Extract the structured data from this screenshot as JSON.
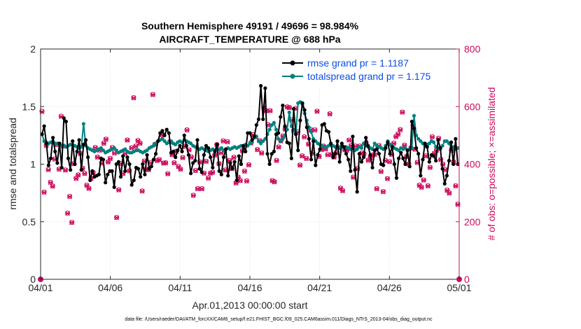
{
  "chart_data": {
    "type": "line",
    "title_line1": "Southern Hemisphere 49191 / 49696 = 98.984%",
    "title_line2": "AIRCRAFT_TEMPERATURE @ 688 hPa",
    "xlabel": "Apr.01,2013 00:00:00 start",
    "ylabel_left": "rmse and totalspread",
    "ylabel_right": "# of obs: o=possible; ×=assimilated",
    "footer": "data file: /Users/raeder/DAI/ATM_forcXX/CAM6_setup/f.e21.FHIST_BGC.f09_025.CAM6assim.011/Diags_NTrS_2013-04/obs_diag_output.nc",
    "xlim": [
      0,
      30
    ],
    "ylim_left": [
      0,
      2
    ],
    "ylim_right": [
      0,
      800
    ],
    "xticks": [
      0,
      5,
      10,
      15,
      20,
      25,
      30
    ],
    "xtick_labels": [
      "04/01",
      "04/06",
      "04/11",
      "04/16",
      "04/21",
      "04/26",
      "05/01"
    ],
    "yticks_left": [
      0,
      0.5,
      1,
      1.5,
      2
    ],
    "ytick_labels_left": [
      "0",
      "0.5",
      "1",
      "1.5",
      "2"
    ],
    "yticks_right": [
      0,
      200,
      400,
      600,
      800
    ],
    "ytick_labels_right": [
      "0",
      "200",
      "400",
      "600",
      "800"
    ],
    "grid": true,
    "legend_position": "top-right",
    "colors": {
      "rmse": "#000000",
      "spread": "#008080",
      "obs": "#cc0a5c",
      "legend_text": "#0a4de6"
    },
    "series": [
      {
        "name": "rmse grand pr = 1.1187",
        "color": "#000000",
        "y": [
          1.26,
          1.33,
          1.18,
          0.99,
          1.05,
          1.23,
          1.11,
          1.01,
          1.18,
          0.97,
          1.4,
          1.37,
          1.05,
          0.95,
          1.2,
          1.0,
          1.11,
          1.21,
          0.95,
          1.17,
          1.21,
          1.06,
          0.86,
          0.94,
          0.89,
          0.9,
          0.91,
          1.05,
          1.04,
          0.84,
          0.91,
          0.94,
          0.94,
          0.8,
          1.0,
          1.02,
          0.89,
          1.07,
          0.94,
          1.06,
          1.0,
          0.82,
          0.86,
          0.97,
          0.96,
          0.89,
          1.0,
          0.91,
          1.08,
          0.96,
          0.98,
          1.04,
          1.09,
          1.2,
          1.27,
          1.29,
          1.25,
          1.3,
          1.27,
          1.1,
          1.11,
          1.06,
          1.12,
          1.16,
          1.11,
          1.25,
          1.16,
          1.08,
          0.92,
          1.01,
          1.03,
          1.21,
          0.96,
          0.93,
          1.08,
          1.16,
          1.14,
          1.06,
          0.97,
          1.11,
          1.17,
          0.94,
          0.91,
          1.06,
          1.13,
          0.9,
          1.01,
          0.96,
          1.02,
          0.86,
          1.07,
          1.0,
          1.16,
          1.11,
          1.27,
          1.27,
          1.21,
          1.24,
          1.34,
          1.39,
          1.68,
          1.39,
          1.66,
          1.09,
          1.0,
          1.09,
          1.11,
          1.26,
          1.27,
          1.41,
          1.51,
          1.33,
          1.19,
          1.18,
          1.05,
          1.48,
          1.26,
          1.12,
          1.38,
          1.53,
          1.47,
          1.32,
          1.22,
          1.04,
          1.2,
          0.99,
          1.08,
          1.13,
          1.34,
          1.35,
          1.29,
          1.28,
          1.18,
          1.06,
          1.09,
          1.2,
          1.02,
          1.18,
          1.15,
          1.09,
          1.04,
          0.94,
          1.24,
          0.95,
          0.76,
          1.09,
          1.02,
          1.06,
          1.23,
          1.16,
          1.08,
          0.97,
          1.12,
          1.13,
          1.09,
          1.0,
          0.99,
          1.14,
          1.19,
          1.09,
          1.15,
          1.0,
          0.88,
          1.05,
          1.1,
          1.05,
          1.0,
          1.12,
          0.98,
          1.37,
          1.31,
          1.14,
          1.09,
          0.9,
          1.04,
          1.18,
          1.15,
          1.02,
          1.08,
          1.07,
          1.03,
          1.21,
          1.14,
          0.96,
          0.83,
          0.9,
          1.03,
          1.19,
          1.0,
          1.22,
          1.0
        ]
      },
      {
        "name": "totalspread grand pr = 1.175",
        "color": "#008080",
        "y": [
          1.26,
          1.2,
          1.19,
          1.18,
          1.19,
          1.2,
          1.18,
          1.18,
          1.17,
          1.16,
          1.16,
          1.15,
          1.16,
          1.17,
          1.17,
          1.16,
          1.15,
          1.14,
          1.15,
          1.35,
          1.16,
          1.14,
          1.13,
          1.12,
          1.11,
          1.12,
          1.13,
          1.14,
          1.12,
          1.1,
          1.11,
          1.12,
          1.13,
          1.14,
          1.12,
          1.1,
          1.11,
          1.12,
          1.13,
          1.11,
          1.1,
          1.1,
          1.11,
          1.12,
          1.12,
          1.11,
          1.1,
          1.11,
          1.12,
          1.14,
          1.15,
          1.16,
          1.18,
          1.2,
          1.21,
          1.22,
          1.2,
          1.18,
          1.19,
          1.2,
          1.18,
          1.17,
          1.19,
          1.2,
          1.19,
          1.21,
          1.2,
          1.19,
          1.18,
          1.16,
          1.15,
          1.14,
          1.13,
          1.14,
          1.13,
          1.12,
          1.11,
          1.12,
          1.13,
          1.12,
          1.13,
          1.13,
          1.14,
          1.12,
          1.13,
          1.14,
          1.13,
          1.14,
          1.15,
          1.14,
          1.15,
          1.16,
          1.15,
          1.17,
          1.16,
          1.18,
          1.19,
          1.23,
          1.24,
          1.2,
          1.18,
          1.2,
          1.22,
          1.26,
          1.3,
          1.34,
          1.36,
          1.3,
          1.22,
          1.2,
          1.22,
          1.25,
          1.3,
          1.45,
          1.33,
          1.3,
          1.26,
          1.53,
          1.54,
          1.52,
          1.44,
          1.38,
          1.32,
          1.28,
          1.22,
          1.2,
          1.18,
          1.17,
          1.16,
          1.15,
          1.15,
          1.16,
          1.17,
          1.16,
          1.15,
          1.14,
          1.14,
          1.16,
          1.14,
          1.15,
          1.14,
          1.13,
          1.14,
          1.12,
          1.13,
          1.15,
          1.14,
          1.18,
          1.16,
          1.15,
          1.14,
          1.13,
          1.18,
          1.16,
          1.15,
          1.14,
          1.13,
          1.16,
          1.2,
          1.17,
          1.16,
          1.14,
          1.13,
          1.12,
          1.14,
          1.13,
          1.14,
          1.12,
          1.13,
          1.14,
          1.42,
          1.25,
          1.22,
          1.2,
          1.18,
          1.16,
          1.17,
          1.18,
          1.2,
          1.19,
          1.15,
          1.14,
          1.13,
          1.16,
          1.2,
          1.2,
          1.18,
          1.14,
          1.15,
          1.13,
          1.14
        ]
      }
    ],
    "obs_possible_values": [
      584,
      303,
      466,
      382,
      337,
      324,
      418,
      468,
      383,
      567,
      463,
      380,
      230,
      288,
      198,
      402,
      351,
      363,
      437,
      386,
      368,
      327,
      316,
      351,
      371,
      458,
      425,
      449,
      404,
      473,
      487,
      408,
      420,
      458,
      439,
      215,
      311,
      402,
      368,
      438,
      484,
      377,
      457,
      631,
      463,
      482,
      473,
      307,
      411,
      383,
      381,
      406,
      642,
      469,
      413,
      416,
      502,
      404,
      405,
      367,
      478,
      433,
      405,
      445,
      392,
      383,
      423,
      462,
      519,
      450,
      425,
      292,
      378,
      315,
      408,
      315,
      369,
      410,
      352,
      369,
      372,
      432,
      468,
      402,
      440,
      481,
      380,
      478,
      413,
      385,
      424,
      335,
      355,
      343,
      447,
      376,
      342,
      398,
      474,
      503,
      495,
      451,
      482,
      439,
      596,
      586,
      537,
      586,
      343,
      339,
      413,
      460,
      481,
      498,
      522,
      599,
      597,
      554,
      516,
      594,
      512,
      397,
      429,
      495,
      420,
      470,
      520,
      439,
      519,
      584,
      427,
      451,
      463,
      453,
      433,
      575,
      434,
      425,
      440,
      458,
      317,
      308,
      450,
      449,
      484,
      465,
      355,
      463,
      385,
      463,
      439,
      436,
      474,
      414,
      424,
      432,
      434,
      315,
      465,
      375,
      305,
      413,
      350,
      409,
      434,
      473,
      496,
      505,
      520,
      581,
      466,
      427,
      401,
      456,
      535,
      452,
      406,
      327,
      320,
      345,
      429,
      325,
      389,
      495,
      438,
      448,
      490,
      416,
      400,
      381,
      310,
      300,
      448,
      408,
      325,
      261
    ],
    "obs_assimilated_values": [
      582,
      302,
      464,
      380,
      336,
      323,
      417,
      467,
      382,
      565,
      462,
      379,
      229,
      287,
      197,
      401,
      350,
      362,
      436,
      385,
      367,
      326,
      315,
      350,
      370,
      457,
      424,
      448,
      403,
      472,
      486,
      407,
      419,
      457,
      438,
      214,
      310,
      401,
      367,
      437,
      483,
      376,
      456,
      630,
      462,
      481,
      472,
      306,
      410,
      382,
      380,
      405,
      641,
      468,
      412,
      415,
      501,
      403,
      404,
      366,
      477,
      432,
      404,
      444,
      391,
      382,
      422,
      461,
      518,
      449,
      424,
      291,
      377,
      314,
      407,
      314,
      368,
      409,
      351,
      368,
      371,
      431,
      467,
      401,
      439,
      480,
      379,
      477,
      412,
      384,
      423,
      334,
      354,
      342,
      446,
      375,
      341,
      397,
      473,
      502,
      494,
      450,
      481,
      438,
      595,
      585,
      536,
      585,
      342,
      338,
      412,
      459,
      480,
      497,
      521,
      598,
      596,
      553,
      515,
      593,
      511,
      396,
      428,
      494,
      419,
      469,
      519,
      438,
      518,
      583,
      426,
      450,
      462,
      452,
      432,
      574,
      433,
      424,
      439,
      457,
      316,
      307,
      449,
      448,
      483,
      464,
      354,
      462,
      384,
      462,
      438,
      435,
      473,
      413,
      423,
      431,
      433,
      314,
      464,
      374,
      304,
      412,
      349,
      408,
      433,
      472,
      495,
      504,
      519,
      580,
      465,
      426,
      400,
      455,
      534,
      451,
      405,
      326,
      319,
      344,
      428,
      324,
      388,
      494,
      437,
      447,
      489,
      415,
      399,
      380,
      309,
      299,
      447,
      407,
      324,
      260
    ]
  }
}
